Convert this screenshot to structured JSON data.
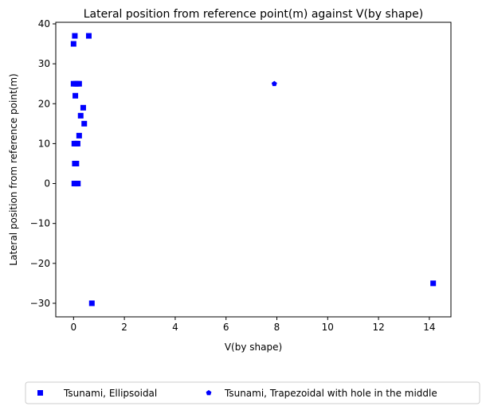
{
  "chart_data": {
    "type": "scatter",
    "title": "Lateral position from reference point(m) against V(by shape)",
    "xlabel": "V(by shape)",
    "ylabel": "Lateral position from reference point(m)",
    "xlim": [
      -0.7,
      14.85
    ],
    "ylim": [
      -33.4,
      40.4
    ],
    "xticks": [
      0,
      2,
      4,
      6,
      8,
      10,
      12,
      14
    ],
    "yticks": [
      -30,
      -20,
      -10,
      0,
      10,
      20,
      30,
      40
    ],
    "xtick_labels": [
      "0",
      "2",
      "4",
      "6",
      "8",
      "10",
      "12",
      "14"
    ],
    "ytick_labels": [
      "−30",
      "−20",
      "−10",
      "0",
      "10",
      "20",
      "30",
      "40"
    ],
    "grid": false,
    "legend_position": "bottom-center",
    "series": [
      {
        "name": "Tsunami, Ellipsoidal",
        "marker": "square",
        "color": "#0000ff",
        "points": [
          {
            "x": 0.05,
            "y": 37
          },
          {
            "x": 0.6,
            "y": 37
          },
          {
            "x": 0.0,
            "y": 35
          },
          {
            "x": 0.0,
            "y": 25
          },
          {
            "x": 0.08,
            "y": 25
          },
          {
            "x": 0.15,
            "y": 25
          },
          {
            "x": 0.22,
            "y": 25
          },
          {
            "x": 0.07,
            "y": 22
          },
          {
            "x": 0.38,
            "y": 19
          },
          {
            "x": 0.28,
            "y": 17
          },
          {
            "x": 0.42,
            "y": 15
          },
          {
            "x": 0.22,
            "y": 12
          },
          {
            "x": 0.03,
            "y": 10
          },
          {
            "x": 0.1,
            "y": 10
          },
          {
            "x": 0.16,
            "y": 10
          },
          {
            "x": 0.05,
            "y": 5
          },
          {
            "x": 0.11,
            "y": 5
          },
          {
            "x": 0.03,
            "y": 0
          },
          {
            "x": 0.1,
            "y": 0
          },
          {
            "x": 0.17,
            "y": 0
          },
          {
            "x": 0.72,
            "y": -30
          },
          {
            "x": 14.15,
            "y": -25
          }
        ]
      },
      {
        "name": "Tsunami, Trapezoidal with hole in the middle",
        "marker": "pentagon",
        "color": "#0000ff",
        "points": [
          {
            "x": 7.9,
            "y": 25
          }
        ]
      }
    ]
  }
}
